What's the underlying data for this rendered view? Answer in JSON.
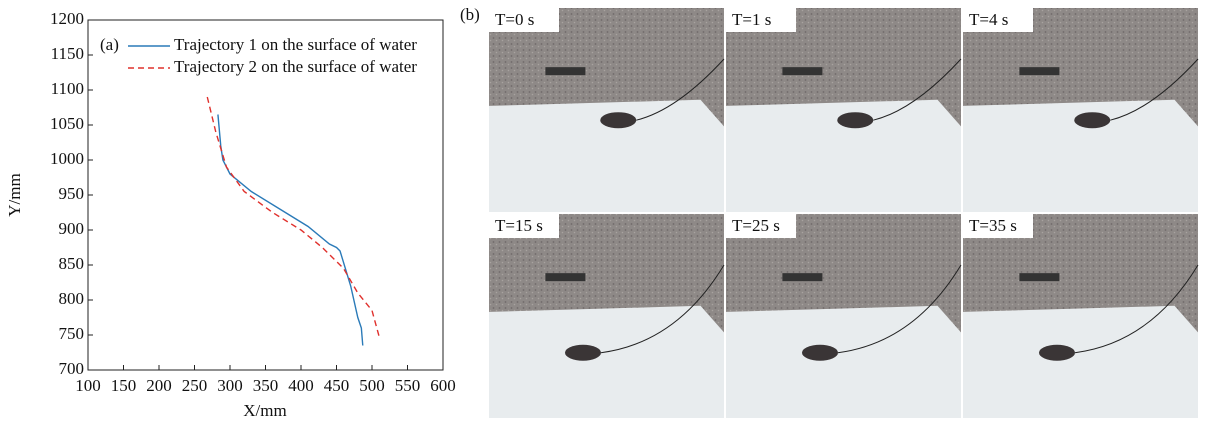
{
  "chart_data": {
    "type": "line",
    "panel_label": "(a)",
    "xlabel": "X/mm",
    "ylabel": "Y/mm",
    "xlim": [
      100,
      600
    ],
    "ylim": [
      700,
      1200
    ],
    "xticks": [
      100,
      150,
      200,
      250,
      300,
      350,
      400,
      450,
      500,
      550,
      600
    ],
    "yticks": [
      700,
      750,
      800,
      850,
      900,
      950,
      1000,
      1050,
      1100,
      1150,
      1200
    ],
    "legend": "upper left",
    "series": [
      {
        "name": "Trajectory 1 on the surface of water",
        "color": "#2a7ab8",
        "dash": "solid",
        "x": [
          283,
          287,
          290,
          300,
          330,
          370,
          410,
          440,
          450,
          455,
          470,
          480,
          485,
          487
        ],
        "values": [
          1065,
          1020,
          1000,
          980,
          955,
          930,
          905,
          880,
          875,
          870,
          820,
          775,
          760,
          735
        ]
      },
      {
        "name": "Trajectory 2 on the surface of water",
        "color": "#e0302c",
        "dash": "dashed",
        "x": [
          268,
          280,
          295,
          320,
          360,
          400,
          430,
          460,
          480,
          500,
          510
        ],
        "values": [
          1090,
          1040,
          990,
          955,
          925,
          900,
          875,
          845,
          810,
          785,
          748
        ]
      }
    ]
  },
  "photos": {
    "panel_label": "(b)",
    "frames": [
      "T=0 s",
      "T=1 s",
      "T=4 s",
      "T=15 s",
      "T=25 s",
      "T=35 s"
    ]
  }
}
